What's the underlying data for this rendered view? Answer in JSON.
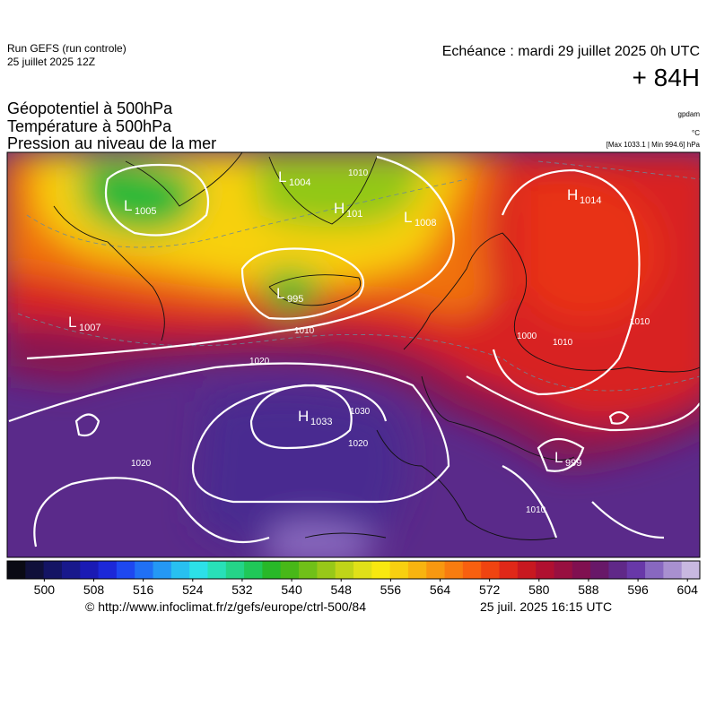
{
  "header": {
    "run": "Run GEFS (run controle)",
    "date": "25 juillet 2025 12Z",
    "echeance": "Echéance : mardi 29 juillet 2025 0h UTC",
    "lead": "+ 84H"
  },
  "titles": [
    "Géopotentiel à 500hPa",
    "Température à 500hPa",
    "Pression au niveau de la mer"
  ],
  "units": [
    "gpdam",
    "°C",
    "[Max 1033.1 | Min 994.6] hPa"
  ],
  "centers": [
    {
      "label": "L",
      "value": "1005"
    },
    {
      "label": "L",
      "value": "1004"
    },
    {
      "label": "H",
      "value": "101"
    },
    {
      "label": "L",
      "value": "1008"
    },
    {
      "label": "L",
      "value": "995"
    },
    {
      "label": "L",
      "value": "1007"
    },
    {
      "label": "H",
      "value": "1033"
    },
    {
      "label": "H",
      "value": "1014"
    },
    {
      "label": "L",
      "value": "999"
    }
  ],
  "isobar_labels": [
    "1010",
    "1010",
    "1020",
    "1020",
    "1030",
    "1020",
    "1010",
    "1010",
    "1000",
    "1010"
  ],
  "colorbar": {
    "range": [
      494,
      606
    ],
    "ticks": [
      500,
      508,
      516,
      524,
      532,
      540,
      548,
      556,
      564,
      572,
      580,
      588,
      596,
      604
    ],
    "colors": [
      "#0a0a14",
      "#10103a",
      "#141464",
      "#18188c",
      "#1a1ab4",
      "#1c28d8",
      "#1e48f0",
      "#2070f4",
      "#2498f4",
      "#28c0f0",
      "#2ce0e8",
      "#28e0b8",
      "#24d488",
      "#20c858",
      "#28b828",
      "#48b818",
      "#70c018",
      "#98c818",
      "#c0d418",
      "#e0e018",
      "#f8e810",
      "#f8d010",
      "#f8b410",
      "#f89810",
      "#f87c10",
      "#f86010",
      "#f04410",
      "#e02818",
      "#c81820",
      "#b01030",
      "#981040",
      "#801050",
      "#681868",
      "#602888",
      "#6838a8",
      "#8868c0",
      "#a890d0",
      "#c8b8e0"
    ]
  },
  "footer": {
    "url": "© http://www.infoclimat.fr/z/gefs/europe/ctrl-500/84",
    "time": "25 juil. 2025 16:15 UTC"
  }
}
